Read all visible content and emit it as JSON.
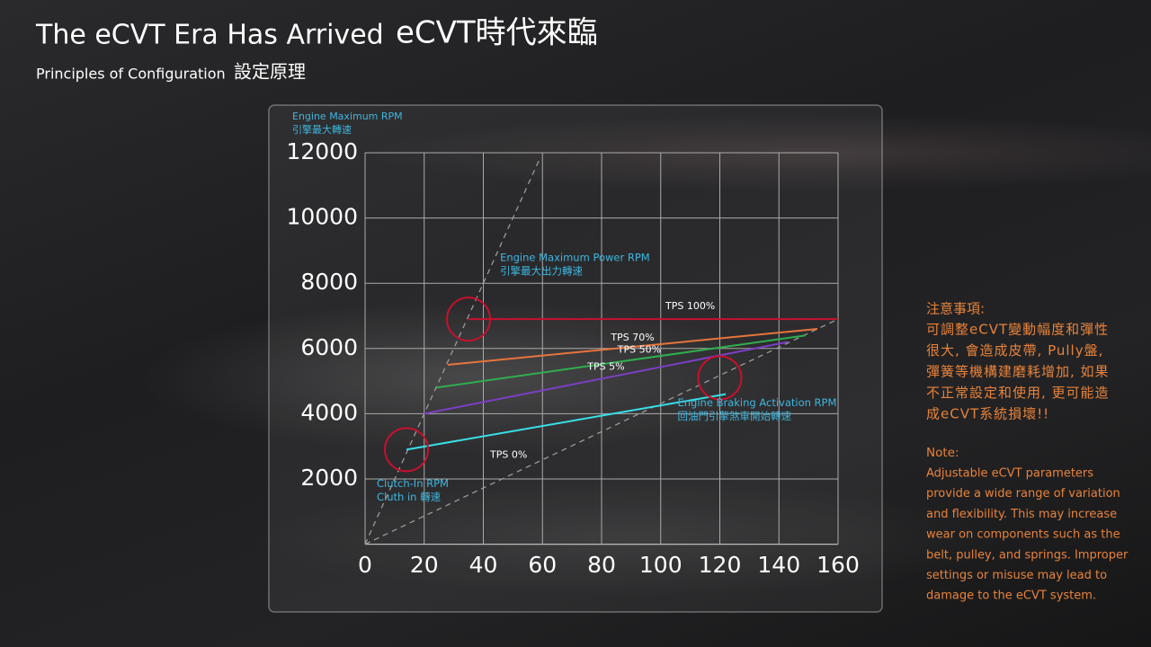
{
  "header": {
    "title": "The eCVT Era Has Arrived",
    "title_zh": "eCVT時代來臨",
    "subtitle": "Principles of Configuration",
    "subtitle_zh": "設定原理"
  },
  "chart_data": {
    "type": "line",
    "y_label": [
      "Engine Maximum RPM",
      "引擎最大轉速"
    ],
    "xlim": [
      0,
      160
    ],
    "xticks": [
      0,
      20,
      40,
      60,
      80,
      100,
      120,
      140,
      160
    ],
    "ylim": [
      0,
      12000
    ],
    "yticks": [
      2000,
      4000,
      6000,
      8000,
      10000,
      12000
    ],
    "grid": true,
    "series": [
      {
        "name": "TPS 100%",
        "color": "#c8102e",
        "x": [
          35,
          160
        ],
        "values": [
          6900,
          6900
        ]
      },
      {
        "name": "TPS 70%",
        "color": "#e8743b",
        "x": [
          28,
          153
        ],
        "values": [
          5500,
          6600
        ]
      },
      {
        "name": "TPS 50%",
        "color": "#2fae4e",
        "x": [
          24,
          149
        ],
        "values": [
          4800,
          6400
        ]
      },
      {
        "name": "TPS 5%",
        "color": "#7b3fc4",
        "x": [
          20,
          143
        ],
        "values": [
          4000,
          6200
        ]
      },
      {
        "name": "TPS 0%",
        "color": "#38e0e8",
        "x": [
          14,
          122
        ],
        "values": [
          2900,
          4600
        ]
      }
    ],
    "guides": [
      {
        "color": "#9a9a9a",
        "dashed": true,
        "x": [
          0,
          59
        ],
        "values": [
          0,
          11800
        ]
      },
      {
        "color": "#9a9a9a",
        "dashed": true,
        "x": [
          0,
          160
        ],
        "values": [
          0,
          6900
        ]
      }
    ],
    "annotations": [
      {
        "text": [
          "Clutch-In RPM",
          "Cluth in 轉速"
        ],
        "x": 14,
        "y": 2900,
        "color": "#c8102e"
      },
      {
        "text": [
          "Engine Maximum Power RPM",
          "引擎最大出力轉速"
        ],
        "x": 35,
        "y": 6900,
        "color": "#c8102e"
      },
      {
        "text": [
          "Engine Braking Activation RPM",
          "回油門引擎煞車開始轉速"
        ],
        "x": 120,
        "y": 5100,
        "color": "#c8102e"
      }
    ]
  },
  "notes": {
    "title_zh": "注意事項:",
    "lines_zh": [
      "可調整eCVT變動幅度和彈性",
      "很大, 會造成皮帶, Pully盤,",
      "彈簧等機構建磨耗增加, 如果",
      "不正常設定和使用, 更可能造",
      "成eCVT系統損壞!!"
    ],
    "title": "Note:",
    "lines": [
      "Adjustable eCVT parameters",
      "provide a wide range of variation",
      "and flexibility. This may increase",
      "wear on components such as the",
      "belt, pulley, and springs. Improper",
      "settings or misuse may lead to",
      "damage to the eCVT system."
    ]
  }
}
